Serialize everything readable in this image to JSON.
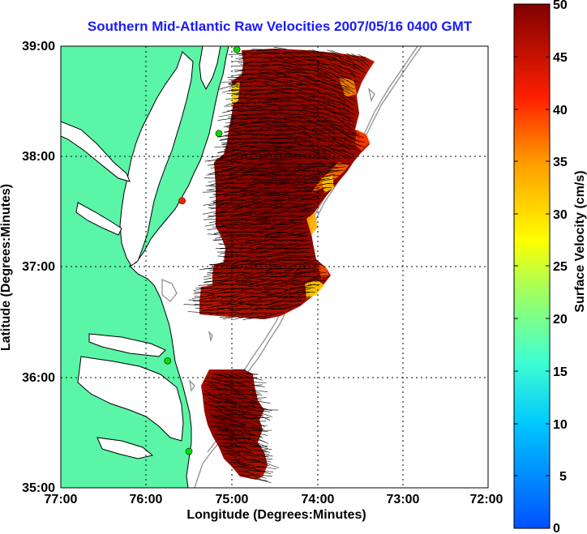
{
  "title": "Southern Mid-Atlantic Raw Velocities 2007/05/16 0400 GMT",
  "map": {
    "xlabel": "Longitude (Degrees:Minutes)",
    "ylabel": "Latitude (Degrees:Minutes)",
    "x_ticks": [
      "77:00",
      "76:00",
      "75:00",
      "74:00",
      "73:00",
      "72:00"
    ],
    "y_ticks": [
      "39:00",
      "38:00",
      "37:00",
      "36:00",
      "35:00"
    ],
    "lon_range": [
      -77,
      -72
    ],
    "lat_range": [
      35,
      39
    ],
    "land_color": "#5af5a6",
    "grid": true
  },
  "colorbar": {
    "label": "Surface Velocity (cm/s)",
    "ticks": [
      "50",
      "45",
      "40",
      "35",
      "30",
      "25",
      "20",
      "15",
      "10",
      "5",
      "0"
    ],
    "range": [
      0,
      50
    ],
    "colormap": "jet",
    "placement": "right"
  },
  "stations": [
    {
      "lat": 38.97,
      "lon": -74.94,
      "color": "#00e000"
    },
    {
      "lat": 38.21,
      "lon": -75.15,
      "color": "#00e000"
    },
    {
      "lat": 37.6,
      "lon": -75.58,
      "color": "#ff2000"
    },
    {
      "lat": 36.15,
      "lon": -75.75,
      "color": "#00e000"
    },
    {
      "lat": 35.33,
      "lon": -75.5,
      "color": "#00e000"
    }
  ]
}
